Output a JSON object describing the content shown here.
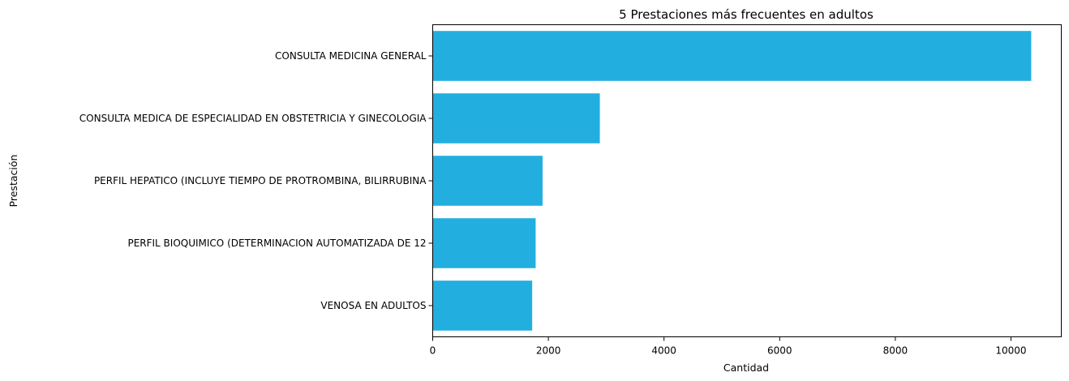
{
  "chart_data": {
    "type": "bar",
    "orientation": "horizontal",
    "title": "5 Prestaciones más frecuentes en adultos",
    "xlabel": "Cantidad",
    "ylabel": "Prestación",
    "categories": [
      "CONSULTA MEDICINA GENERAL",
      "CONSULTA MEDICA DE ESPECIALIDAD EN OBSTETRICIA Y GINECOLOGIA",
      "PERFIL HEPATICO (INCLUYE TIEMPO DE PROTROMBINA, BILIRRUBINA",
      "PERFIL BIOQUIMICO (DETERMINACION AUTOMATIZADA DE 12",
      "VENOSA EN ADULTOS"
    ],
    "values": [
      10350,
      2890,
      1900,
      1780,
      1720
    ],
    "xlim": [
      0,
      10870
    ],
    "xticks": [
      0,
      2000,
      4000,
      6000,
      8000,
      10000
    ],
    "grid": false,
    "legend": "none",
    "bar_color": "#22afe0"
  }
}
